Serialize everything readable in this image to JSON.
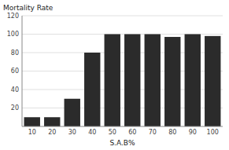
{
  "chart_data": {
    "type": "bar",
    "categories": [
      "10",
      "20",
      "30",
      "40",
      "50",
      "60",
      "70",
      "80",
      "90",
      "100"
    ],
    "values": [
      10,
      10,
      30,
      80,
      100,
      100,
      100,
      97,
      100,
      98
    ],
    "color": "#2b2b2b",
    "xlabel": "S.A.B%",
    "ylabel": "Mortality Rate",
    "ylim": [
      0,
      120
    ],
    "yticks": [
      20,
      40,
      60,
      80,
      100,
      120
    ],
    "grid": true
  }
}
